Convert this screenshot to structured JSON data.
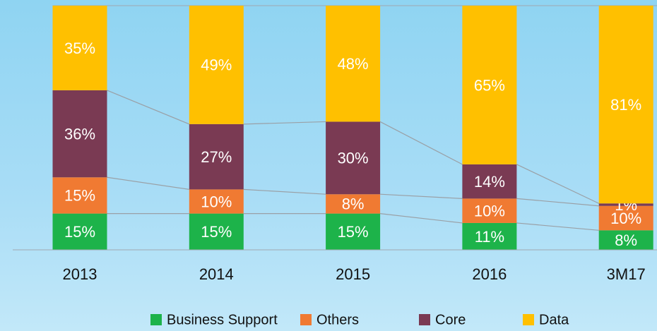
{
  "chart_data": {
    "type": "bar",
    "stacking": "percent",
    "categories": [
      "2013",
      "2014",
      "2015",
      "2016",
      "3M17"
    ],
    "series": [
      {
        "name": "Business Support",
        "color": "#1db34a",
        "values": [
          15,
          15,
          15,
          11,
          8
        ],
        "value_labels": [
          "15%",
          "15%",
          "15%",
          "11%",
          "8%"
        ]
      },
      {
        "name": "Others",
        "color": "#f07a32",
        "values": [
          15,
          10,
          8,
          10,
          10
        ],
        "value_labels": [
          "15%",
          "10%",
          "8%",
          "10%",
          "10%"
        ]
      },
      {
        "name": "Core",
        "color": "#7a3a53",
        "values": [
          36,
          27,
          30,
          14,
          1
        ],
        "value_labels": [
          "36%",
          "27%",
          "30%",
          "14%",
          "1%"
        ]
      },
      {
        "name": "Data",
        "color": "#ffc000",
        "values": [
          35,
          49,
          48,
          65,
          81
        ],
        "value_labels": [
          "35%",
          "49%",
          "48%",
          "65%",
          "81%"
        ]
      }
    ],
    "ylim": [
      0,
      100
    ]
  }
}
